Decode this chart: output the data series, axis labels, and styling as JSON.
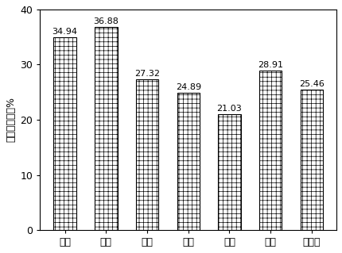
{
  "categories": [
    "鸡粥",
    "牛粥",
    "猪粥",
    "羊粥",
    "鸭粥",
    "马粥",
    "腐殖酸"
  ],
  "values": [
    34.94,
    36.88,
    27.32,
    24.89,
    21.03,
    28.91,
    25.46
  ],
  "ylabel": "石油烃降解率%",
  "ylim": [
    0,
    40
  ],
  "yticks": [
    0,
    10,
    20,
    30,
    40
  ],
  "bar_facecolor": "#ffffff",
  "bar_edgecolor": "#000000",
  "label_fontsize": 9,
  "tick_fontsize": 9,
  "value_fontsize": 8,
  "hatch": "+++",
  "background_color": "#ffffff",
  "bar_width": 0.55
}
